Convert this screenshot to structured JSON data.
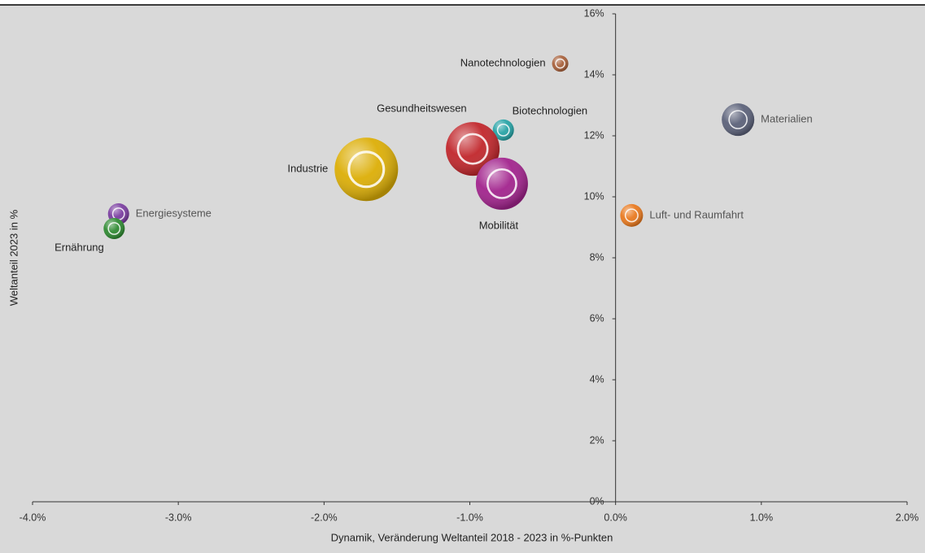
{
  "chart_data": {
    "type": "scatter",
    "xlabel": "Dynamik, Veränderung Weltanteil 2018 - 2023 in %-Punkten",
    "ylabel": "Weltanteil 2023 in %",
    "xlim": [
      -4,
      2
    ],
    "ylim": [
      0,
      16
    ],
    "xticks": [
      {
        "value": -4,
        "label": "-4.0%"
      },
      {
        "value": -3,
        "label": "-3.0%"
      },
      {
        "value": -2,
        "label": "-2.0%"
      },
      {
        "value": -1,
        "label": "-1.0%"
      },
      {
        "value": 0,
        "label": "0.0%"
      },
      {
        "value": 1,
        "label": "1.0%"
      },
      {
        "value": 2,
        "label": "2.0%"
      }
    ],
    "yticks": [
      {
        "value": 0,
        "label": "0%"
      },
      {
        "value": 2,
        "label": "2%"
      },
      {
        "value": 4,
        "label": "4%"
      },
      {
        "value": 6,
        "label": "6%"
      },
      {
        "value": 8,
        "label": "8%"
      },
      {
        "value": 10,
        "label": "10%"
      },
      {
        "value": 12,
        "label": "12%"
      },
      {
        "value": 14,
        "label": "14%"
      },
      {
        "value": 16,
        "label": "16%"
      }
    ],
    "labels": [
      "Nanotechnologien",
      "Materialien",
      "Biotechnologien",
      "Gesundheitswesen",
      "Industrie",
      "Mobilität",
      "Luft- und Raumfahrt",
      "Energiesysteme",
      "Ernährung"
    ],
    "x": [
      -0.38,
      0.84,
      -0.77,
      -0.98,
      -1.71,
      -0.78,
      0.11,
      -3.41,
      -3.44
    ],
    "y": [
      14.37,
      12.53,
      12.19,
      11.57,
      10.9,
      10.43,
      9.39,
      9.44,
      8.96
    ],
    "sizes": [
      10,
      20,
      13,
      33,
      39,
      32,
      14,
      13,
      13
    ],
    "colors": [
      "#a8603a",
      "#5b6179",
      "#26a3a6",
      "#c1262b",
      "#dcae06",
      "#a2238d",
      "#e9791e",
      "#7a3da0",
      "#2e8a31"
    ]
  }
}
